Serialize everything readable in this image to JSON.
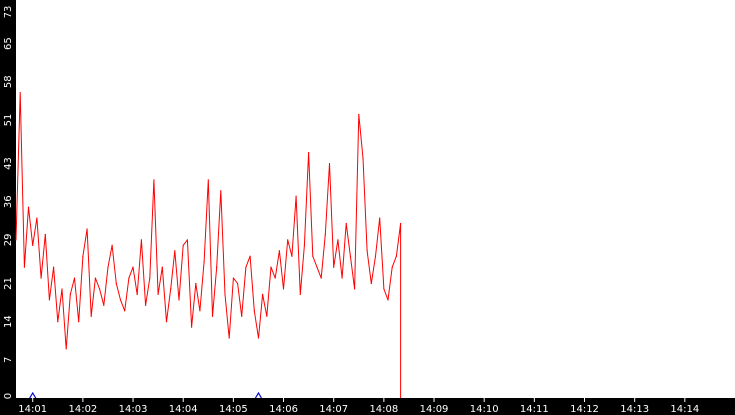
{
  "chart_data": {
    "type": "line",
    "title": "",
    "xlabel": "",
    "ylabel": "",
    "grid": false,
    "legend": "none",
    "ylim": [
      0,
      73
    ],
    "xlim": [
      "14:00:40",
      "14:15:00"
    ],
    "y_ticks": [
      "0",
      "7",
      "14",
      "21",
      "29",
      "36",
      "43",
      "51",
      "58",
      "65",
      "73"
    ],
    "x_ticks": [
      "14:01",
      "14:02",
      "14:03",
      "14:04",
      "14:05",
      "14:06",
      "14:07",
      "14:08",
      "14:09",
      "14:10",
      "14:11",
      "14:12",
      "14:13",
      "14:14"
    ],
    "colors": {
      "background": "#ffffff",
      "axis": "#000000",
      "tick_text": "#ffffff",
      "series": "#ff0000",
      "markers": "#0000cc"
    },
    "series": [
      {
        "color": "#ff0000",
        "x": [
          "14:00:40",
          "14:00:45",
          "14:00:50",
          "14:00:55",
          "14:01:00",
          "14:01:05",
          "14:01:10",
          "14:01:15",
          "14:01:20",
          "14:01:25",
          "14:01:30",
          "14:01:35",
          "14:01:40",
          "14:01:45",
          "14:01:50",
          "14:01:55",
          "14:02:00",
          "14:02:05",
          "14:02:10",
          "14:02:15",
          "14:02:20",
          "14:02:25",
          "14:02:30",
          "14:02:35",
          "14:02:40",
          "14:02:45",
          "14:02:50",
          "14:02:55",
          "14:03:00",
          "14:03:05",
          "14:03:10",
          "14:03:15",
          "14:03:20",
          "14:03:25",
          "14:03:30",
          "14:03:35",
          "14:03:40",
          "14:03:45",
          "14:03:50",
          "14:03:55",
          "14:04:00",
          "14:04:05",
          "14:04:10",
          "14:04:15",
          "14:04:20",
          "14:04:25",
          "14:04:30",
          "14:04:35",
          "14:04:40",
          "14:04:45",
          "14:04:50",
          "14:04:55",
          "14:05:00",
          "14:05:05",
          "14:05:10",
          "14:05:15",
          "14:05:20",
          "14:05:25",
          "14:05:30",
          "14:05:35",
          "14:05:40",
          "14:05:45",
          "14:05:50",
          "14:05:55",
          "14:06:00",
          "14:06:05",
          "14:06:10",
          "14:06:15",
          "14:06:20",
          "14:06:25",
          "14:06:30",
          "14:06:35",
          "14:06:40",
          "14:06:45",
          "14:06:50",
          "14:06:55",
          "14:07:00",
          "14:07:05",
          "14:07:10",
          "14:07:15",
          "14:07:20",
          "14:07:25",
          "14:07:30",
          "14:07:35",
          "14:07:40",
          "14:07:45",
          "14:07:50",
          "14:07:55",
          "14:08:00",
          "14:08:05",
          "14:08:10",
          "14:08:15",
          "14:08:20"
        ],
        "values": [
          29,
          56,
          24,
          35,
          28,
          33,
          22,
          30,
          18,
          24,
          14,
          20,
          9,
          19,
          22,
          14,
          26,
          31,
          15,
          22,
          20,
          17,
          24,
          28,
          21,
          18,
          16,
          22,
          24,
          19,
          29,
          17,
          22,
          40,
          19,
          24,
          14,
          20,
          27,
          18,
          28,
          29,
          13,
          21,
          16,
          25,
          40,
          15,
          24,
          38,
          19,
          11,
          22,
          21,
          15,
          24,
          26,
          16,
          11,
          19,
          15,
          24,
          22,
          27,
          20,
          29,
          26,
          37,
          19,
          28,
          45,
          26,
          24,
          22,
          30,
          43,
          24,
          29,
          22,
          32,
          26,
          20,
          52,
          44,
          27,
          21,
          26,
          33,
          20,
          18,
          24,
          26,
          32
        ]
      }
    ],
    "markers_x": [
      "14:01:00",
      "14:05:30"
    ]
  }
}
